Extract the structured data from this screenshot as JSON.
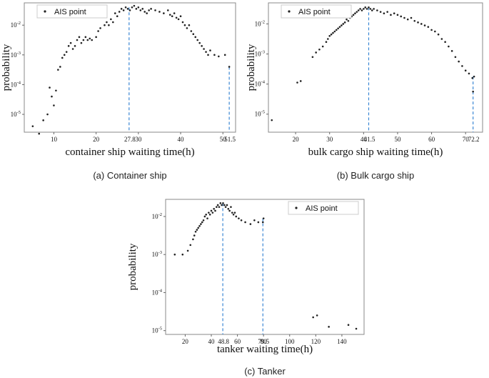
{
  "chart_data": [
    {
      "id": "container",
      "type": "scatter",
      "series_name": "AIS point",
      "xlabel": "container ship waiting time(h)",
      "ylabel": "probability",
      "caption": "(a) Container ship",
      "xlim": [
        3,
        53
      ],
      "ylog": true,
      "ylim_exp": [
        -5.6,
        -1.25
      ],
      "xticks": [
        10,
        20,
        30,
        40,
        50
      ],
      "yticks_exp": [
        -2,
        -3,
        -4,
        -5
      ],
      "markers": [
        27.8,
        51.5
      ],
      "marker_labels": [
        "27.8",
        "51.5"
      ],
      "legend_pos": "top-left",
      "points": [
        [
          5,
          -5.4
        ],
        [
          6.5,
          -5.65
        ],
        [
          7.5,
          -5.2
        ],
        [
          8.5,
          -5.0
        ],
        [
          9,
          -4.1
        ],
        [
          9.5,
          -4.4
        ],
        [
          10,
          -4.7
        ],
        [
          10.5,
          -4.2
        ],
        [
          11,
          -3.5
        ],
        [
          11.5,
          -3.4
        ],
        [
          12,
          -3.1
        ],
        [
          12.5,
          -3.0
        ],
        [
          13,
          -2.9
        ],
        [
          13.5,
          -2.7
        ],
        [
          14,
          -2.6
        ],
        [
          14.5,
          -2.8
        ],
        [
          15,
          -2.7
        ],
        [
          15.5,
          -2.5
        ],
        [
          16,
          -2.4
        ],
        [
          16.5,
          -2.6
        ],
        [
          17,
          -2.5
        ],
        [
          17.5,
          -2.4
        ],
        [
          18,
          -2.5
        ],
        [
          18.5,
          -2.45
        ],
        [
          19,
          -2.5
        ],
        [
          20,
          -2.4
        ],
        [
          20.5,
          -2.2
        ],
        [
          21,
          -2.1
        ],
        [
          22,
          -2.0
        ],
        [
          22.5,
          -1.9
        ],
        [
          23,
          -2.0
        ],
        [
          23.5,
          -1.8
        ],
        [
          24,
          -1.9
        ],
        [
          24.5,
          -1.6
        ],
        [
          25,
          -1.7
        ],
        [
          25.5,
          -1.55
        ],
        [
          26,
          -1.45
        ],
        [
          26.5,
          -1.5
        ],
        [
          27,
          -1.4
        ],
        [
          27.5,
          -1.45
        ],
        [
          28,
          -1.5
        ],
        [
          28.5,
          -1.4
        ],
        [
          29,
          -1.35
        ],
        [
          29.5,
          -1.45
        ],
        [
          30,
          -1.4
        ],
        [
          30.5,
          -1.5
        ],
        [
          31,
          -1.45
        ],
        [
          31.5,
          -1.55
        ],
        [
          32,
          -1.6
        ],
        [
          32.5,
          -1.5
        ],
        [
          33,
          -1.45
        ],
        [
          34,
          -1.5
        ],
        [
          35,
          -1.55
        ],
        [
          36,
          -1.6
        ],
        [
          37,
          -1.5
        ],
        [
          37.5,
          -1.65
        ],
        [
          38,
          -1.7
        ],
        [
          38.5,
          -1.6
        ],
        [
          39,
          -1.75
        ],
        [
          39.5,
          -1.8
        ],
        [
          40,
          -1.7
        ],
        [
          40.5,
          -1.9
        ],
        [
          41,
          -2.0
        ],
        [
          41.5,
          -2.1
        ],
        [
          42,
          -2.0
        ],
        [
          42.5,
          -2.2
        ],
        [
          43,
          -2.3
        ],
        [
          43.5,
          -2.4
        ],
        [
          44,
          -2.5
        ],
        [
          44.5,
          -2.6
        ],
        [
          45,
          -2.7
        ],
        [
          45.5,
          -2.8
        ],
        [
          46,
          -2.9
        ],
        [
          46.5,
          -3.0
        ],
        [
          47,
          -2.85
        ],
        [
          48,
          -3.0
        ],
        [
          49,
          -3.05
        ],
        [
          50.5,
          -3.0
        ],
        [
          51.5,
          -3.4
        ]
      ]
    },
    {
      "id": "bulk",
      "type": "scatter",
      "series_name": "AIS point",
      "xlabel": "bulk cargo ship waiting time(h)",
      "ylabel": "probability",
      "caption": "(b) Bulk cargo ship",
      "xlim": [
        12,
        75
      ],
      "ylog": true,
      "ylim_exp": [
        -5.6,
        -1.3
      ],
      "xticks": [
        20,
        30,
        40,
        50,
        60,
        70
      ],
      "yticks_exp": [
        -2,
        -3,
        -4,
        -5
      ],
      "markers": [
        41.5,
        72.2
      ],
      "marker_labels": [
        "41.5",
        "72.2"
      ],
      "legend_pos": "top-left",
      "points": [
        [
          13,
          -5.2
        ],
        [
          20.5,
          -3.95
        ],
        [
          21.5,
          -3.9
        ],
        [
          25,
          -3.1
        ],
        [
          26,
          -2.95
        ],
        [
          27,
          -2.85
        ],
        [
          28,
          -2.75
        ],
        [
          29,
          -2.6
        ],
        [
          29.5,
          -2.5
        ],
        [
          30,
          -2.4
        ],
        [
          30.5,
          -2.35
        ],
        [
          31,
          -2.3
        ],
        [
          31.5,
          -2.25
        ],
        [
          32,
          -2.2
        ],
        [
          32.5,
          -2.15
        ],
        [
          33,
          -2.1
        ],
        [
          33.5,
          -2.05
        ],
        [
          34,
          -2.0
        ],
        [
          34.5,
          -1.95
        ],
        [
          35,
          -1.85
        ],
        [
          35.5,
          -1.9
        ],
        [
          36,
          -1.8
        ],
        [
          36.5,
          -1.75
        ],
        [
          37,
          -1.7
        ],
        [
          37.5,
          -1.65
        ],
        [
          38,
          -1.6
        ],
        [
          38.5,
          -1.55
        ],
        [
          39,
          -1.5
        ],
        [
          39.5,
          -1.55
        ],
        [
          40,
          -1.5
        ],
        [
          40.5,
          -1.45
        ],
        [
          41,
          -1.5
        ],
        [
          41.5,
          -1.45
        ],
        [
          42,
          -1.5
        ],
        [
          42.5,
          -1.55
        ],
        [
          43,
          -1.5
        ],
        [
          44,
          -1.55
        ],
        [
          45,
          -1.6
        ],
        [
          46,
          -1.65
        ],
        [
          47,
          -1.6
        ],
        [
          48,
          -1.7
        ],
        [
          49,
          -1.65
        ],
        [
          50,
          -1.7
        ],
        [
          51,
          -1.75
        ],
        [
          52,
          -1.8
        ],
        [
          53,
          -1.85
        ],
        [
          54,
          -1.8
        ],
        [
          55,
          -1.9
        ],
        [
          56,
          -1.95
        ],
        [
          57,
          -2.0
        ],
        [
          58,
          -2.05
        ],
        [
          59,
          -2.1
        ],
        [
          60,
          -2.2
        ],
        [
          61,
          -2.25
        ],
        [
          62,
          -2.35
        ],
        [
          63,
          -2.5
        ],
        [
          64,
          -2.6
        ],
        [
          65,
          -2.75
        ],
        [
          66,
          -2.9
        ],
        [
          67,
          -3.1
        ],
        [
          68,
          -3.25
        ],
        [
          69,
          -3.4
        ],
        [
          70,
          -3.55
        ],
        [
          71,
          -3.65
        ],
        [
          72,
          -3.8
        ],
        [
          72.5,
          -3.75
        ],
        [
          72.2,
          -4.25
        ]
      ]
    },
    {
      "id": "tanker",
      "type": "scatter",
      "series_name": "AIS point",
      "xlabel": "tanker waiting time(h)",
      "ylabel": "probability",
      "caption": "(c) Tanker",
      "xlim": [
        5,
        157
      ],
      "ylog": true,
      "ylim_exp": [
        -5.1,
        -1.55
      ],
      "xticks": [
        20,
        40,
        60,
        80,
        100,
        120,
        140
      ],
      "yticks_exp": [
        -2,
        -3,
        -4,
        -5
      ],
      "markers": [
        48.8,
        79.5
      ],
      "marker_labels": [
        "48.8",
        "79.5"
      ],
      "legend_pos": "top-right",
      "points": [
        [
          12,
          -3.0
        ],
        [
          18,
          -3.0
        ],
        [
          22,
          -2.9
        ],
        [
          24,
          -2.75
        ],
        [
          26,
          -2.6
        ],
        [
          27,
          -2.5
        ],
        [
          28,
          -2.4
        ],
        [
          29,
          -2.35
        ],
        [
          30,
          -2.3
        ],
        [
          31,
          -2.25
        ],
        [
          32,
          -2.2
        ],
        [
          33,
          -2.15
        ],
        [
          34,
          -2.1
        ],
        [
          35,
          -2.0
        ],
        [
          36,
          -1.95
        ],
        [
          37,
          -2.05
        ],
        [
          38,
          -1.9
        ],
        [
          39,
          -1.95
        ],
        [
          40,
          -1.85
        ],
        [
          41,
          -1.9
        ],
        [
          42,
          -1.8
        ],
        [
          43,
          -1.85
        ],
        [
          44,
          -1.75
        ],
        [
          45,
          -1.7
        ],
        [
          46,
          -1.75
        ],
        [
          47,
          -1.65
        ],
        [
          48,
          -1.7
        ],
        [
          49,
          -1.65
        ],
        [
          50,
          -1.7
        ],
        [
          51,
          -1.75
        ],
        [
          52,
          -1.7
        ],
        [
          53,
          -1.8
        ],
        [
          54,
          -1.85
        ],
        [
          55,
          -1.75
        ],
        [
          56,
          -1.9
        ],
        [
          57,
          -1.95
        ],
        [
          58,
          -1.9
        ],
        [
          59,
          -2.0
        ],
        [
          61,
          -2.05
        ],
        [
          63,
          -2.1
        ],
        [
          66,
          -2.15
        ],
        [
          70,
          -2.2
        ],
        [
          73,
          -2.1
        ],
        [
          76,
          -2.15
        ],
        [
          79.5,
          -2.15
        ],
        [
          80,
          -2.05
        ],
        [
          118,
          -4.65
        ],
        [
          121,
          -4.6
        ],
        [
          130,
          -4.9
        ],
        [
          145,
          -4.85
        ],
        [
          151,
          -4.95
        ]
      ]
    }
  ]
}
